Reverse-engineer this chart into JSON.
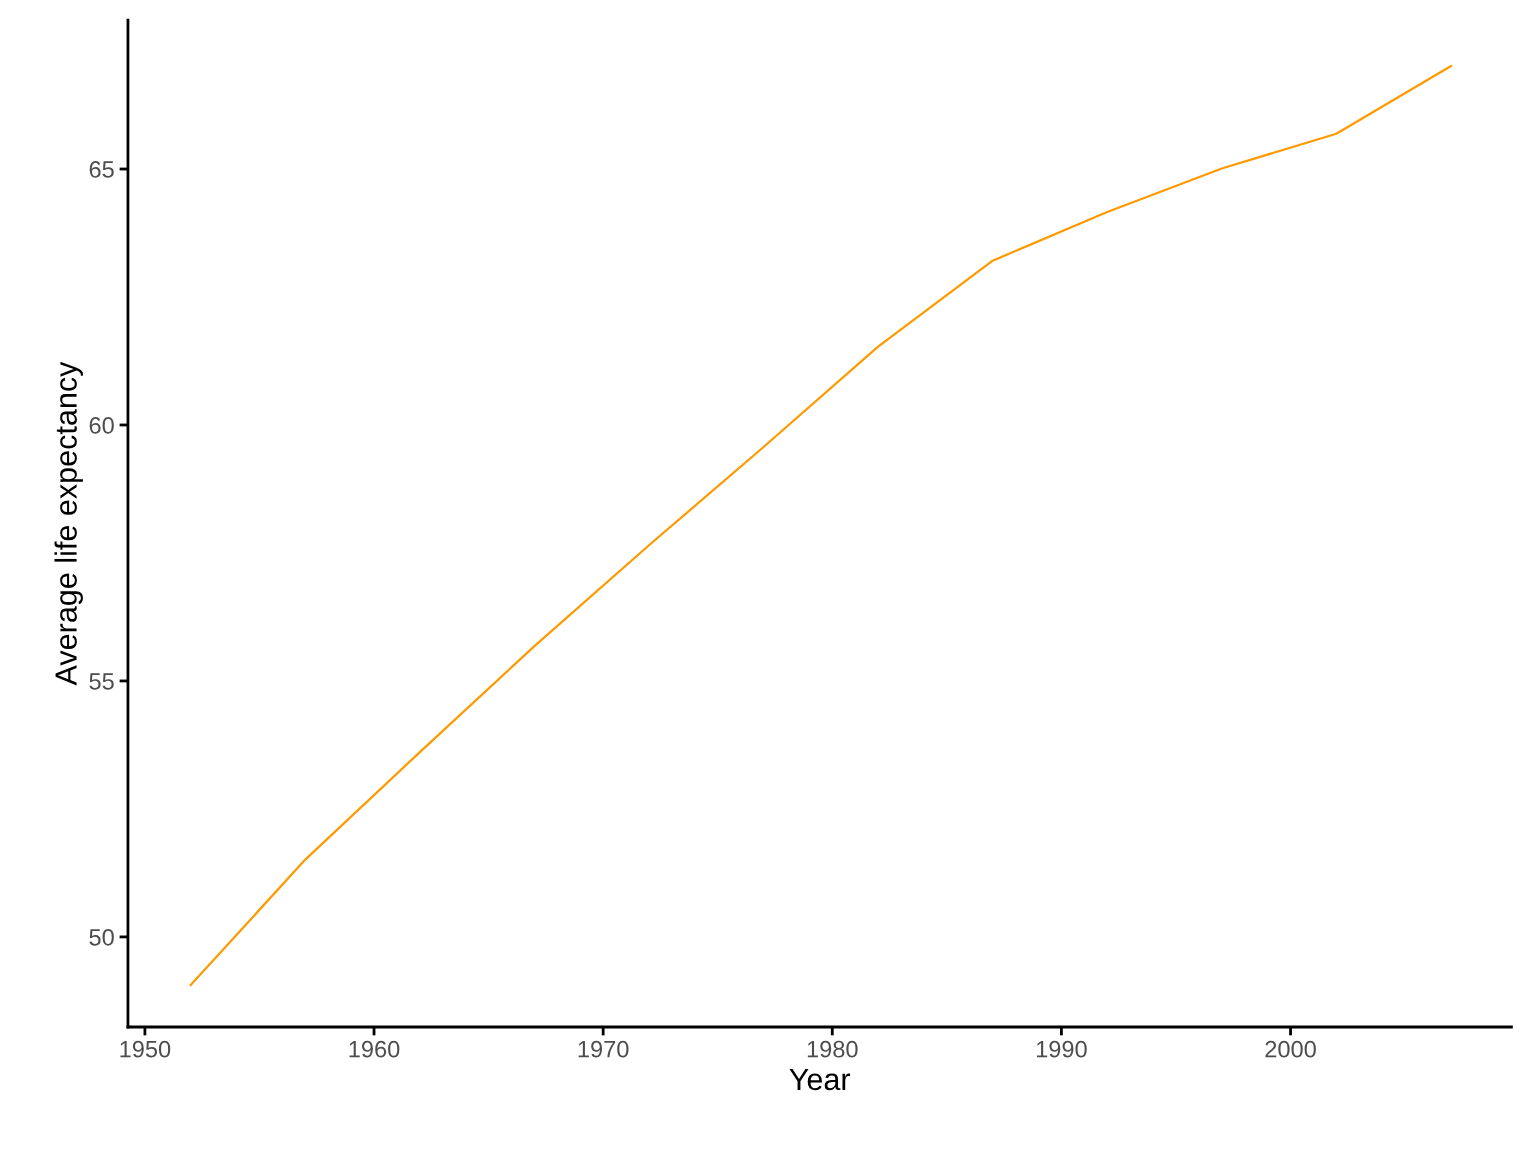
{
  "chart_data": {
    "type": "line",
    "xlabel": "Year",
    "ylabel": "Average life expectancy",
    "x": [
      1952,
      1957,
      1962,
      1967,
      1972,
      1977,
      1982,
      1987,
      1992,
      1997,
      2002,
      2007
    ],
    "series": [
      {
        "color": "#ff9900",
        "values": [
          49.06,
          51.51,
          53.61,
          55.68,
          57.65,
          59.57,
          61.53,
          63.21,
          64.16,
          65.01,
          65.69,
          67.01
        ]
      }
    ],
    "xlim": [
      1949.26,
      2009.64
    ],
    "ylim": [
      48.24,
      67.91
    ],
    "xticks": [
      1950,
      1960,
      1970,
      1980,
      1990,
      2000
    ],
    "yticks": [
      50,
      55,
      60,
      65
    ],
    "grid": false,
    "legend": false,
    "marker": "none",
    "line_style": "solid"
  }
}
